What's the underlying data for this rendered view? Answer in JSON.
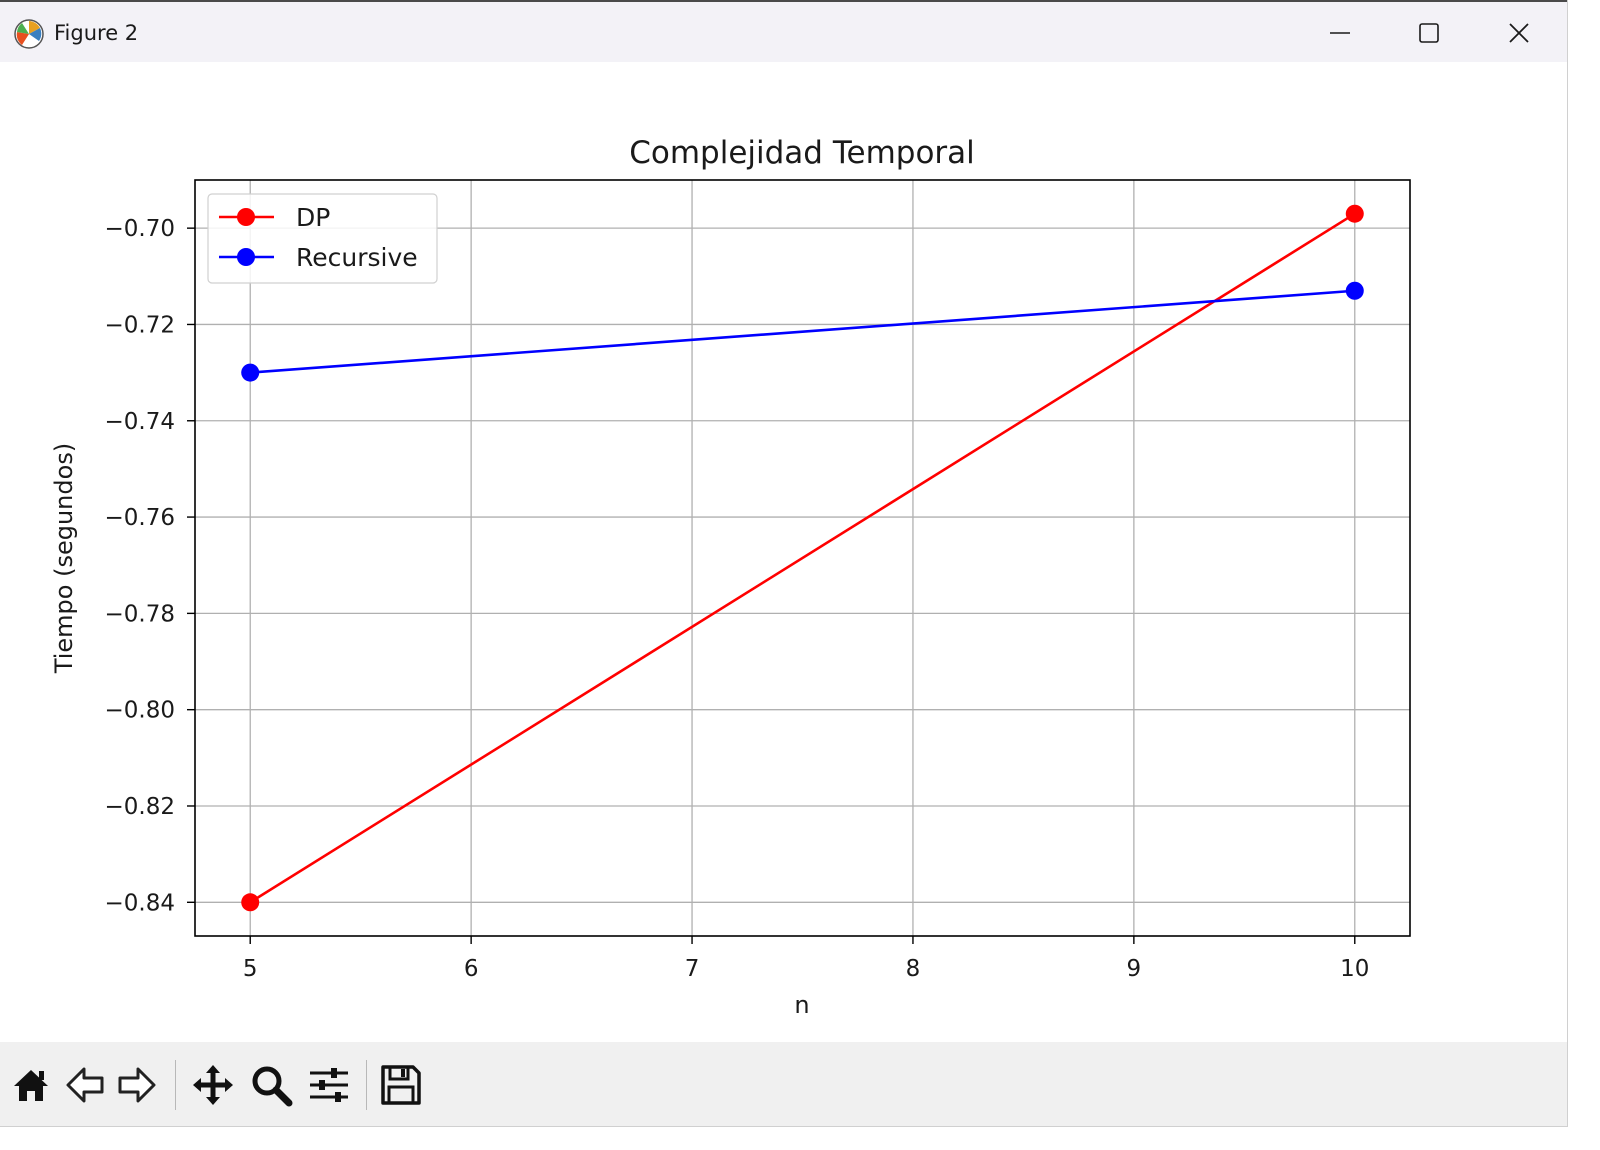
{
  "window": {
    "title": "Figure 2",
    "controls": {
      "minimize": "minimize",
      "maximize": "maximize",
      "close": "close"
    }
  },
  "toolbar": {
    "items": [
      "home-icon",
      "back-arrow-icon",
      "forward-arrow-icon",
      "pan-icon",
      "zoom-icon",
      "configure-subplots-icon",
      "save-icon"
    ]
  },
  "chart_data": {
    "type": "line",
    "title": "Complejidad Temporal",
    "xlabel": "n",
    "ylabel": "Tiempo (segundos)",
    "xlim": [
      4.75,
      10.25
    ],
    "ylim": [
      -0.847,
      -0.69
    ],
    "x_ticks": [
      5,
      6,
      7,
      8,
      9,
      10
    ],
    "x_tick_labels": [
      "5",
      "6",
      "7",
      "8",
      "9",
      "10"
    ],
    "y_ticks": [
      -0.7,
      -0.72,
      -0.74,
      -0.76,
      -0.78,
      -0.8,
      -0.82,
      -0.84
    ],
    "y_tick_labels": [
      "−0.70",
      "−0.72",
      "−0.74",
      "−0.76",
      "−0.78",
      "−0.80",
      "−0.82",
      "−0.84"
    ],
    "grid": true,
    "legend_position": "top-left",
    "series": [
      {
        "name": "DP",
        "color": "#ff0000",
        "marker": "circle",
        "x": [
          5,
          10
        ],
        "y": [
          -0.84,
          -0.697
        ]
      },
      {
        "name": "Recursive",
        "color": "#0000ff",
        "marker": "circle",
        "x": [
          5,
          10
        ],
        "y": [
          -0.73,
          -0.713
        ]
      }
    ]
  }
}
